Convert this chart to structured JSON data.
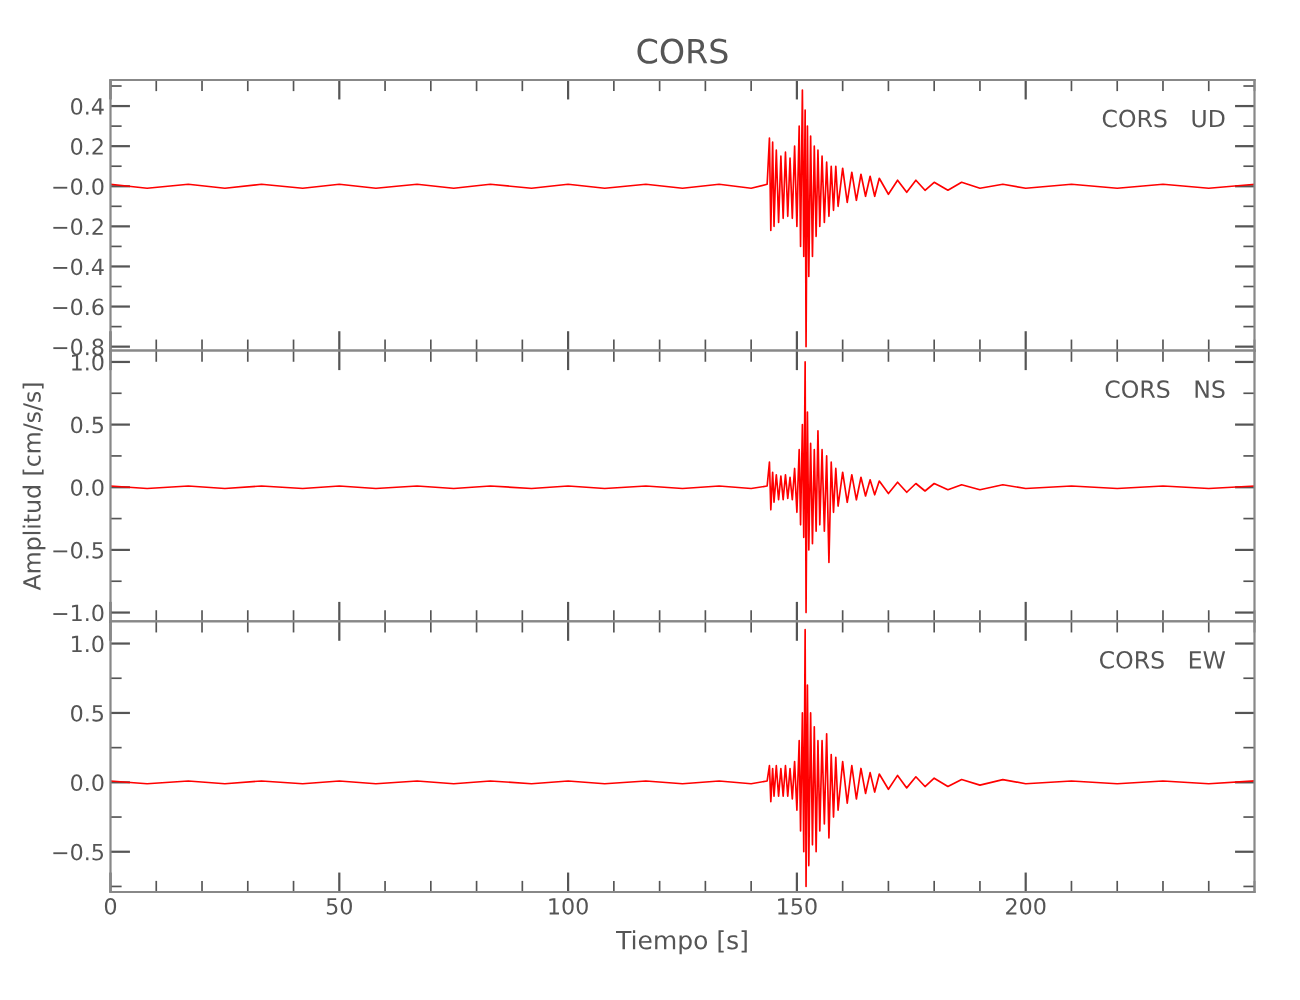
{
  "chart_data": [
    {
      "type": "line",
      "title": "CORS",
      "annotations": [
        "CORS   UD"
      ],
      "tick_labels": "y",
      "grid": false,
      "xlim": [
        0,
        250
      ],
      "xticks": [
        0,
        50,
        100,
        150,
        200
      ],
      "ylim": [
        -0.82,
        0.53
      ],
      "yticks": [
        0.4,
        0.2,
        {
          "value": 0,
          "label": "−0.0"
        },
        {
          "value": -0.2,
          "label": "−0.2"
        },
        {
          "value": -0.4,
          "label": "−0.4"
        },
        {
          "value": -0.6,
          "label": "−0.6"
        },
        {
          "value": -0.8,
          "label": "−0.8"
        }
      ],
      "series": [
        {
          "color": "#ff0000",
          "x": [
            0,
            8,
            17,
            25,
            33,
            42,
            50,
            58,
            67,
            75,
            83,
            92,
            100,
            108,
            117,
            125,
            133,
            140,
            143.5,
            144,
            144.3,
            144.7,
            145,
            145.5,
            146,
            146.5,
            147,
            147.5,
            148,
            148.5,
            149,
            149.5,
            150,
            150.5,
            150.8,
            151.2,
            151.5,
            151.8,
            152,
            152.3,
            152.6,
            153,
            153.4,
            153.8,
            154.2,
            154.6,
            155,
            155.5,
            156,
            156.5,
            157,
            157.5,
            158,
            158.5,
            159,
            160,
            161,
            162,
            163,
            164,
            165,
            166,
            167,
            168,
            170,
            172,
            174,
            176,
            178,
            180,
            183,
            186,
            190,
            195,
            200,
            210,
            220,
            230,
            240,
            250
          ],
          "values": [
            0.01,
            -0.01,
            0.01,
            -0.01,
            0.01,
            -0.01,
            0.01,
            -0.01,
            0.01,
            -0.01,
            0.01,
            -0.01,
            0.01,
            -0.01,
            0.01,
            -0.01,
            0.01,
            -0.01,
            0.01,
            0.24,
            -0.22,
            0.22,
            -0.2,
            0.18,
            -0.18,
            0.15,
            -0.16,
            0.17,
            -0.15,
            0.14,
            -0.16,
            0.2,
            -0.2,
            0.3,
            -0.3,
            0.48,
            -0.35,
            0.38,
            -0.8,
            0.3,
            -0.45,
            0.25,
            -0.35,
            0.2,
            -0.25,
            0.18,
            -0.2,
            0.15,
            -0.18,
            0.12,
            -0.15,
            0.1,
            -0.12,
            0.1,
            -0.1,
            0.09,
            -0.08,
            0.07,
            -0.07,
            0.06,
            -0.05,
            0.05,
            -0.05,
            0.04,
            -0.04,
            0.03,
            -0.03,
            0.03,
            -0.02,
            0.02,
            -0.02,
            0.02,
            -0.01,
            0.01,
            -0.01,
            0.01,
            -0.01,
            0.01,
            -0.01,
            0.01
          ]
        }
      ]
    },
    {
      "type": "line",
      "ylabel": "Amplitud [cm/s/s]",
      "annotations": [
        "CORS   NS"
      ],
      "tick_labels": "y",
      "grid": false,
      "xlim": [
        0,
        250
      ],
      "xticks": [
        0,
        50,
        100,
        150,
        200
      ],
      "ylim": [
        -1.07,
        1.09
      ],
      "yticks": [
        {
          "value": 1,
          "label": "1.0"
        },
        0.5,
        {
          "value": 0,
          "label": "0.0"
        },
        {
          "value": -0.5,
          "label": "−0.5"
        },
        {
          "value": -1.0,
          "label": "−1.0"
        }
      ],
      "series": [
        {
          "color": "#ff0000",
          "x": [
            0,
            8,
            17,
            25,
            33,
            42,
            50,
            58,
            67,
            75,
            83,
            92,
            100,
            108,
            117,
            125,
            133,
            140,
            143.5,
            144,
            144.3,
            144.7,
            145,
            145.5,
            146,
            146.5,
            147,
            147.5,
            148,
            148.5,
            149,
            149.5,
            150,
            150.5,
            150.8,
            151.2,
            151.5,
            151.8,
            152,
            152.3,
            152.6,
            153,
            153.4,
            153.8,
            154.2,
            154.6,
            155,
            155.5,
            156,
            156.5,
            157,
            157.5,
            158,
            158.5,
            159,
            160,
            161,
            162,
            163,
            164,
            165,
            166,
            167,
            168,
            170,
            172,
            174,
            176,
            178,
            180,
            183,
            186,
            190,
            195,
            200,
            210,
            220,
            230,
            240,
            250
          ],
          "values": [
            0.01,
            -0.01,
            0.01,
            -0.01,
            0.01,
            -0.01,
            0.01,
            -0.01,
            0.01,
            -0.01,
            0.01,
            -0.01,
            0.01,
            -0.01,
            0.01,
            -0.01,
            0.01,
            -0.01,
            0.01,
            0.2,
            -0.18,
            0.12,
            -0.12,
            0.1,
            -0.1,
            0.09,
            -0.1,
            0.1,
            -0.09,
            0.08,
            -0.1,
            0.15,
            -0.2,
            0.3,
            -0.3,
            0.5,
            -0.4,
            1.0,
            -1.0,
            0.6,
            -0.5,
            0.35,
            -0.45,
            0.3,
            -0.35,
            0.45,
            -0.3,
            0.3,
            -0.35,
            0.25,
            -0.6,
            0.2,
            -0.2,
            0.15,
            -0.15,
            0.12,
            -0.12,
            0.1,
            -0.1,
            0.08,
            -0.07,
            0.06,
            -0.06,
            0.05,
            -0.05,
            0.04,
            -0.04,
            0.03,
            -0.03,
            0.03,
            -0.02,
            0.02,
            -0.02,
            0.02,
            -0.01,
            0.01,
            -0.01,
            0.01,
            -0.01,
            0.01
          ]
        }
      ]
    },
    {
      "type": "line",
      "xlabel": "Tiempo [s]",
      "annotations": [
        "CORS   EW"
      ],
      "grid": false,
      "xlim": [
        0,
        250
      ],
      "xticks": [
        0,
        50,
        100,
        150,
        200
      ],
      "ylim": [
        -0.79,
        1.16
      ],
      "yticks": [
        {
          "value": 1,
          "label": "1.0"
        },
        0.5,
        {
          "value": 0,
          "label": "0.0"
        },
        {
          "value": -0.5,
          "label": "−0.5"
        }
      ],
      "series": [
        {
          "color": "#ff0000",
          "x": [
            0,
            8,
            17,
            25,
            33,
            42,
            50,
            58,
            67,
            75,
            83,
            92,
            100,
            108,
            117,
            125,
            133,
            140,
            143.5,
            144,
            144.3,
            144.7,
            145,
            145.5,
            146,
            146.5,
            147,
            147.5,
            148,
            148.5,
            149,
            149.5,
            150,
            150.5,
            150.8,
            151.2,
            151.5,
            151.8,
            152,
            152.3,
            152.6,
            153,
            153.4,
            153.8,
            154.2,
            154.6,
            155,
            155.5,
            156,
            156.5,
            157,
            157.5,
            158,
            158.5,
            159,
            160,
            161,
            162,
            163,
            164,
            165,
            166,
            167,
            168,
            170,
            172,
            174,
            176,
            178,
            180,
            183,
            186,
            190,
            195,
            200,
            210,
            220,
            230,
            240,
            250
          ],
          "values": [
            0.01,
            -0.01,
            0.01,
            -0.01,
            0.01,
            -0.01,
            0.01,
            -0.01,
            0.01,
            -0.01,
            0.01,
            -0.01,
            0.01,
            -0.01,
            0.01,
            -0.01,
            0.01,
            -0.01,
            0.01,
            0.12,
            -0.14,
            0.1,
            -0.1,
            0.12,
            -0.1,
            0.1,
            -0.1,
            0.12,
            -0.1,
            0.1,
            -0.12,
            0.15,
            -0.2,
            0.3,
            -0.35,
            0.5,
            -0.5,
            1.1,
            -0.75,
            0.7,
            -0.6,
            0.5,
            -0.45,
            0.4,
            -0.5,
            0.3,
            -0.35,
            0.3,
            -0.3,
            0.35,
            -0.4,
            0.2,
            -0.25,
            0.18,
            -0.2,
            0.15,
            -0.15,
            0.12,
            -0.12,
            0.1,
            -0.08,
            0.07,
            -0.07,
            0.06,
            -0.05,
            0.05,
            -0.04,
            0.04,
            -0.03,
            0.03,
            -0.03,
            0.02,
            -0.02,
            0.02,
            -0.01,
            0.01,
            -0.01,
            0.01,
            -0.01,
            0.01
          ]
        }
      ]
    }
  ]
}
